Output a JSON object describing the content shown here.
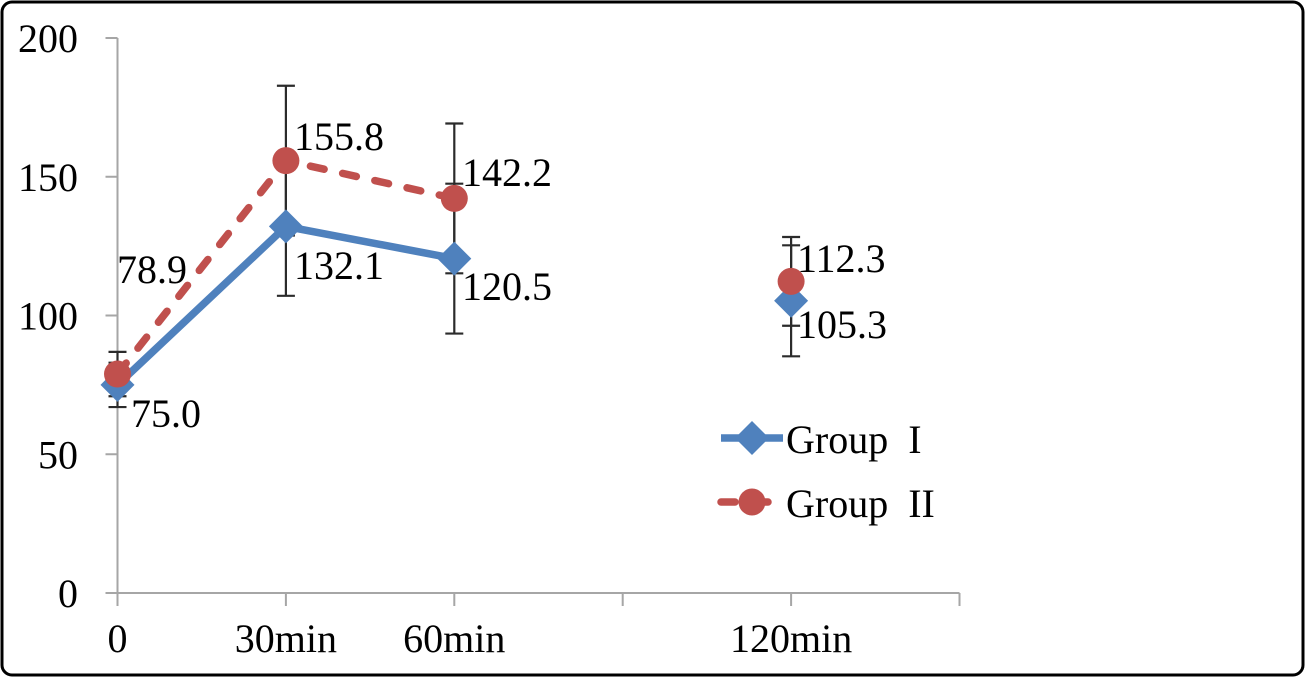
{
  "figure": {
    "background_color": "#FFFFFF",
    "border_color": "#000000"
  },
  "chart_data": {
    "type": "line",
    "title": "",
    "x_axis": {
      "slot_count": 5,
      "tick_labels": [
        "0",
        "30min",
        "60min",
        "",
        "120min",
        ""
      ]
    },
    "y_axis": {
      "min": 0,
      "max": 200,
      "tick_step": 50,
      "tick_labels": [
        "0",
        "50",
        "100",
        "150",
        "200"
      ]
    },
    "categories": [
      "0",
      "30min",
      "60min",
      "120min"
    ],
    "series": [
      {
        "name": "Group I",
        "color": "#4F81BD",
        "marker": "diamond",
        "line_style": "solid",
        "x_slots": [
          0,
          1,
          2,
          4
        ],
        "values": [
          75.0,
          132.1,
          120.5,
          105.3
        ],
        "point_labels": [
          "75.0",
          "132.1",
          "120.5",
          "105.3"
        ],
        "errors": [
          8,
          25,
          27,
          20
        ],
        "connected_segments": [
          [
            0,
            1,
            2
          ]
        ]
      },
      {
        "name": "Group II",
        "color": "#C0504D",
        "marker": "circle",
        "line_style": "dashed",
        "x_slots": [
          0,
          1,
          2,
          4
        ],
        "values": [
          78.9,
          155.8,
          142.2,
          112.3
        ],
        "point_labels": [
          "78.9",
          "155.8",
          "142.2",
          "112.3"
        ],
        "errors": [
          8,
          27,
          27,
          16
        ],
        "connected_segments": [
          [
            0,
            1,
            2
          ]
        ]
      }
    ],
    "legend": {
      "position": "right-middle",
      "items": [
        {
          "label": "Group  I",
          "series": "Group I"
        },
        {
          "label": "Group  II",
          "series": "Group II"
        }
      ]
    },
    "error_bars": true,
    "grid": false,
    "colors": {
      "axis": "#A6A6A6",
      "error_bar": "#2B2B2B",
      "text": "#000000"
    }
  }
}
